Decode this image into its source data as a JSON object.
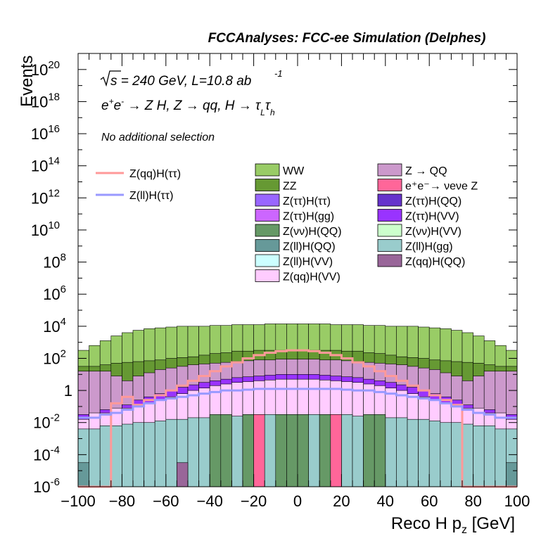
{
  "header": {
    "title": "FCCAnalyses: FCC-ee Simulation (Delphes)"
  },
  "annotations": {
    "energy_prefix": "s",
    "energy_rest": " = 240 GeV, L=10.8 ab",
    "lumi_exp": "-1",
    "process": "e⁺e⁻ → Z H, Z → qq, H → τLτh",
    "selection": "No additional selection"
  },
  "colors": {
    "WW": "#99cc66",
    "ZZ": "#669933",
    "Z_QQ": "#cc99cc",
    "nunuZ": "#ff6699",
    "ZtautauH_tautau": "#9966ff",
    "ZtautauH_QQ": "#6633cc",
    "ZtautauH_gg": "#cc66ff",
    "ZtautauH_VV": "#9933ff",
    "ZnunuH_QQ": "#669966",
    "ZnunuH_VV": "#ccffcc",
    "ZllH_QQ": "#669999",
    "ZllH_gg": "#99cccc",
    "ZllH_VV": "#ccffff",
    "ZqqH_QQ": "#996699",
    "ZqqH_VV": "#ffccff",
    "sig_qq": "#ff9999",
    "sig_ll": "#9999ff"
  },
  "chart_data": {
    "type": "histogram",
    "title": "FCCAnalyses: FCC-ee Simulation (Delphes)",
    "xlabel": "Reco H p_z [GeV]",
    "ylabel": "Events",
    "xlim": [
      -100,
      100
    ],
    "ylim": [
      1e-06,
      1e+21
    ],
    "log_y": true,
    "bin_width": 5,
    "x_ticks": [
      "−100",
      "−80",
      "−60",
      "−40",
      "−20",
      "0",
      "20",
      "40",
      "60",
      "80",
      "100"
    ],
    "y_ticks": [
      {
        "base": "10",
        "exp": "20",
        "value": 1e+20
      },
      {
        "base": "10",
        "exp": "18",
        "value": 1e+18
      },
      {
        "base": "10",
        "exp": "16",
        "value": 1e+16
      },
      {
        "base": "10",
        "exp": "14",
        "value": 100000000000000.0
      },
      {
        "base": "10",
        "exp": "12",
        "value": 1000000000000.0
      },
      {
        "base": "10",
        "exp": "10",
        "value": 10000000000.0
      },
      {
        "base": "10",
        "exp": "8",
        "value": 100000000.0
      },
      {
        "base": "10",
        "exp": "6",
        "value": 1000000.0
      },
      {
        "base": "10",
        "exp": "4",
        "value": 10000.0
      },
      {
        "base": "10",
        "exp": "2",
        "value": 100.0
      },
      {
        "base": "1",
        "exp": "",
        "value": 1
      },
      {
        "base": "10",
        "exp": "-2",
        "value": 0.01
      },
      {
        "base": "10",
        "exp": "-4",
        "value": 0.0001
      },
      {
        "base": "10",
        "exp": "-6",
        "value": 1e-06
      }
    ],
    "legend_lines": [
      {
        "label": "Z(qq)H(ττ)",
        "color": "#ff9999"
      },
      {
        "label": "Z(ll)H(ττ)",
        "color": "#9999ff"
      }
    ],
    "legend_fills": [
      {
        "label": "WW",
        "color": "#99cc66"
      },
      {
        "label": "Z → QQ",
        "color": "#cc99cc"
      },
      {
        "label": "ZZ",
        "color": "#669933"
      },
      {
        "label": "e⁺e⁻→ νeνe Z",
        "color": "#ff6699"
      },
      {
        "label": "Z(ττ)H(ττ)",
        "color": "#9966ff"
      },
      {
        "label": "Z(ττ)H(QQ)",
        "color": "#6633cc"
      },
      {
        "label": "Z(ττ)H(gg)",
        "color": "#cc66ff"
      },
      {
        "label": "Z(ττ)H(VV)",
        "color": "#9933ff"
      },
      {
        "label": "Z(νν)H(QQ)",
        "color": "#669966"
      },
      {
        "label": "Z(νν)H(VV)",
        "color": "#ccffcc"
      },
      {
        "label": "Z(ll)H(QQ)",
        "color": "#669999"
      },
      {
        "label": "Z(ll)H(gg)",
        "color": "#99cccc"
      },
      {
        "label": "Z(ll)H(VV)",
        "color": "#ccffff"
      },
      {
        "label": "Z(qq)H(QQ)",
        "color": "#996699"
      },
      {
        "label": "Z(qq)H(VV)",
        "color": "#ffccff"
      }
    ],
    "stack_levels": [
      {
        "name": "WW",
        "color": "#99cc66",
        "log10": [
          2.5,
          2.8,
          3.1,
          3.4,
          3.6,
          3.75,
          3.85,
          3.9,
          3.95,
          4.0,
          4.0,
          4.0,
          4.05,
          4.05,
          4.1,
          4.1,
          4.1,
          4.15,
          4.15,
          4.15,
          4.15,
          4.15,
          4.15,
          4.1,
          4.1,
          4.1,
          4.05,
          4.05,
          4.0,
          4.0,
          4.0,
          3.95,
          3.9,
          3.85,
          3.75,
          3.6,
          3.4,
          3.1,
          2.8,
          2.5
        ]
      },
      {
        "name": "ZZ",
        "color": "#669933",
        "log10": [
          1.5,
          1.5,
          1.6,
          1.7,
          1.75,
          1.8,
          1.85,
          1.9,
          2.0,
          2.05,
          2.1,
          2.2,
          2.3,
          2.35,
          2.45,
          2.45,
          2.5,
          2.5,
          2.5,
          2.5,
          2.5,
          2.5,
          2.5,
          2.5,
          2.45,
          2.45,
          2.35,
          2.3,
          2.2,
          2.1,
          2.05,
          2.0,
          1.9,
          1.85,
          1.8,
          1.75,
          1.7,
          1.6,
          1.5,
          1.5
        ]
      },
      {
        "name": "Z → QQ",
        "color": "#cc99cc",
        "log10": [
          1.2,
          1.2,
          1.2,
          0.9,
          0.6,
          0.9,
          1.1,
          1.3,
          1.4,
          1.5,
          1.6,
          1.65,
          1.7,
          1.75,
          1.8,
          1.85,
          1.9,
          1.9,
          1.95,
          1.95,
          1.95,
          1.95,
          1.9,
          1.9,
          1.85,
          1.8,
          1.75,
          1.7,
          1.65,
          1.6,
          1.5,
          1.4,
          1.3,
          1.1,
          0.9,
          0.6,
          0.9,
          1.2,
          1.2,
          1.2
        ]
      },
      {
        "name": "Z(ττ)H(VV)",
        "color": "#9933ff",
        "log10": [
          -1.5,
          -1.5,
          -1.2,
          -1.2,
          -0.9,
          -0.6,
          -0.4,
          -0.2,
          0.0,
          0.2,
          0.35,
          0.5,
          0.6,
          0.7,
          0.8,
          0.85,
          0.9,
          0.95,
          1.0,
          1.0,
          1.0,
          1.0,
          0.95,
          0.9,
          0.85,
          0.8,
          0.7,
          0.6,
          0.5,
          0.35,
          0.2,
          0.0,
          -0.2,
          -0.4,
          -0.6,
          -0.9,
          -1.2,
          -1.2,
          -1.5,
          -1.5
        ]
      },
      {
        "name": "Z(qq)H(VV)",
        "color": "#ffccff",
        "log10": [
          -1.8,
          -1.4,
          -1.4,
          -1.1,
          -1.1,
          -1.0,
          -0.8,
          -0.6,
          -0.4,
          -0.2,
          0.0,
          0.15,
          0.3,
          0.4,
          0.5,
          0.55,
          0.6,
          0.65,
          0.7,
          0.7,
          0.7,
          0.7,
          0.65,
          0.6,
          0.55,
          0.5,
          0.4,
          0.3,
          0.15,
          0.0,
          -0.2,
          -0.4,
          -0.6,
          -0.8,
          -1.0,
          -1.1,
          -1.1,
          -1.4,
          -1.4,
          -1.8
        ]
      },
      {
        "name": "Z(ll)H(gg)",
        "color": "#99cccc",
        "log10": [
          -2.4,
          -2.4,
          -2.2,
          -2.2,
          -2.1,
          -2.0,
          -2.0,
          -1.9,
          -1.8,
          -1.8,
          -1.7,
          -1.7,
          -1.6,
          -1.6,
          -1.6,
          -1.5,
          -1.5,
          -1.5,
          -1.5,
          -1.5,
          -1.5,
          -1.5,
          -1.5,
          -1.5,
          -1.5,
          -1.6,
          -1.6,
          -1.6,
          -1.7,
          -1.7,
          -1.8,
          -1.8,
          -1.9,
          -2.0,
          -2.0,
          -2.1,
          -2.2,
          -2.2,
          -2.4,
          -2.4
        ]
      }
    ],
    "narrow_bins": [
      {
        "name": "Z(νν)H(QQ)",
        "color": "#669966",
        "log10": -1.5,
        "x": [
          -40,
          -35,
          -25,
          -10,
          -5,
          0,
          10,
          30,
          35
        ]
      },
      {
        "name": "e⁺e⁻→ νeνe Z",
        "color": "#ff6699",
        "log10": -1.5,
        "x": [
          -20,
          15
        ]
      },
      {
        "name": "Z(ll)H(QQ)",
        "color": "#669999",
        "log10": -4.5,
        "x": [
          -100,
          95
        ]
      },
      {
        "name": "Z(qq)H(QQ)",
        "color": "#996699",
        "log10": -4.5,
        "x": [
          -55
        ]
      }
    ],
    "signal_lines": [
      {
        "name": "Z(qq)H(ττ)",
        "color": "#ff9999",
        "log10": [
          -6,
          -6,
          -6.0,
          -0.8,
          -0.4,
          -0.9,
          -0.6,
          -0.3,
          0.0,
          0.3,
          0.6,
          0.9,
          1.2,
          1.5,
          1.75,
          2.0,
          2.2,
          2.35,
          2.45,
          2.5,
          2.5,
          2.45,
          2.35,
          2.2,
          2.0,
          1.75,
          1.5,
          1.2,
          0.9,
          0.6,
          0.3,
          0.0,
          -0.3,
          -0.6,
          -0.9,
          -6.0,
          -6,
          -6,
          -6,
          -6
        ]
      },
      {
        "name": "Z(ll)H(ττ)",
        "color": "#9999ff",
        "log10": [
          -1.7,
          -1.7,
          -1.5,
          -1.4,
          -1.2,
          -1.0,
          -0.8,
          -0.6,
          -0.5,
          -0.4,
          -0.3,
          -0.2,
          -0.1,
          0.0,
          0.0,
          0.05,
          0.1,
          0.1,
          0.1,
          0.1,
          0.1,
          0.1,
          0.1,
          0.1,
          0.05,
          0.0,
          0.0,
          -0.1,
          -0.2,
          -0.3,
          -0.4,
          -0.5,
          -0.6,
          -0.8,
          -1.0,
          -1.2,
          -1.4,
          -1.5,
          -1.7,
          -1.7
        ]
      }
    ]
  }
}
